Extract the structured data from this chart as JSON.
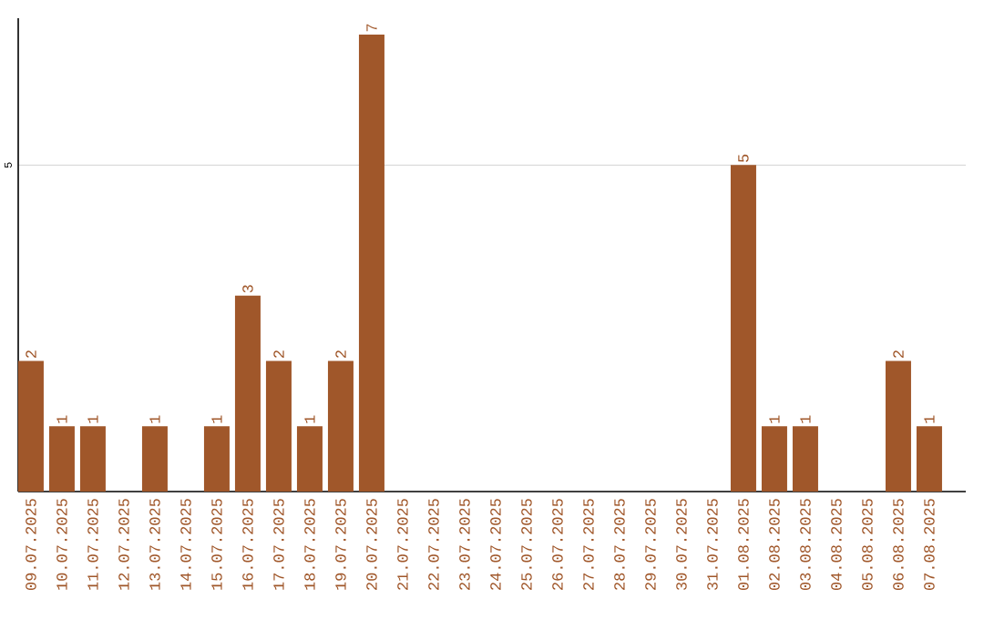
{
  "chart_data": {
    "type": "bar",
    "color": "#a0572a",
    "categories": [
      "09.07.2025",
      "10.07.2025",
      "11.07.2025",
      "12.07.2025",
      "13.07.2025",
      "14.07.2025",
      "15.07.2025",
      "16.07.2025",
      "17.07.2025",
      "18.07.2025",
      "19.07.2025",
      "20.07.2025",
      "21.07.2025",
      "22.07.2025",
      "23.07.2025",
      "24.07.2025",
      "25.07.2025",
      "26.07.2025",
      "27.07.2025",
      "28.07.2025",
      "29.07.2025",
      "30.07.2025",
      "31.07.2025",
      "01.08.2025",
      "02.08.2025",
      "03.08.2025",
      "04.08.2025",
      "05.08.2025",
      "06.08.2025",
      "07.08.2025"
    ],
    "values": [
      2,
      1,
      1,
      0,
      1,
      0,
      1,
      3,
      2,
      1,
      2,
      7,
      0,
      0,
      0,
      0,
      0,
      0,
      0,
      0,
      0,
      0,
      0,
      5,
      1,
      1,
      0,
      0,
      2,
      1
    ],
    "value_labels": [
      "2",
      "1",
      "1",
      null,
      "1",
      null,
      "1",
      "3",
      "2",
      "1",
      "2",
      "7",
      null,
      null,
      null,
      null,
      null,
      null,
      null,
      null,
      null,
      null,
      null,
      "5",
      "1",
      "1",
      null,
      null,
      "2",
      "1"
    ],
    "ylim": [
      0,
      7.25
    ],
    "yticks": [
      5
    ],
    "grid": "y"
  }
}
